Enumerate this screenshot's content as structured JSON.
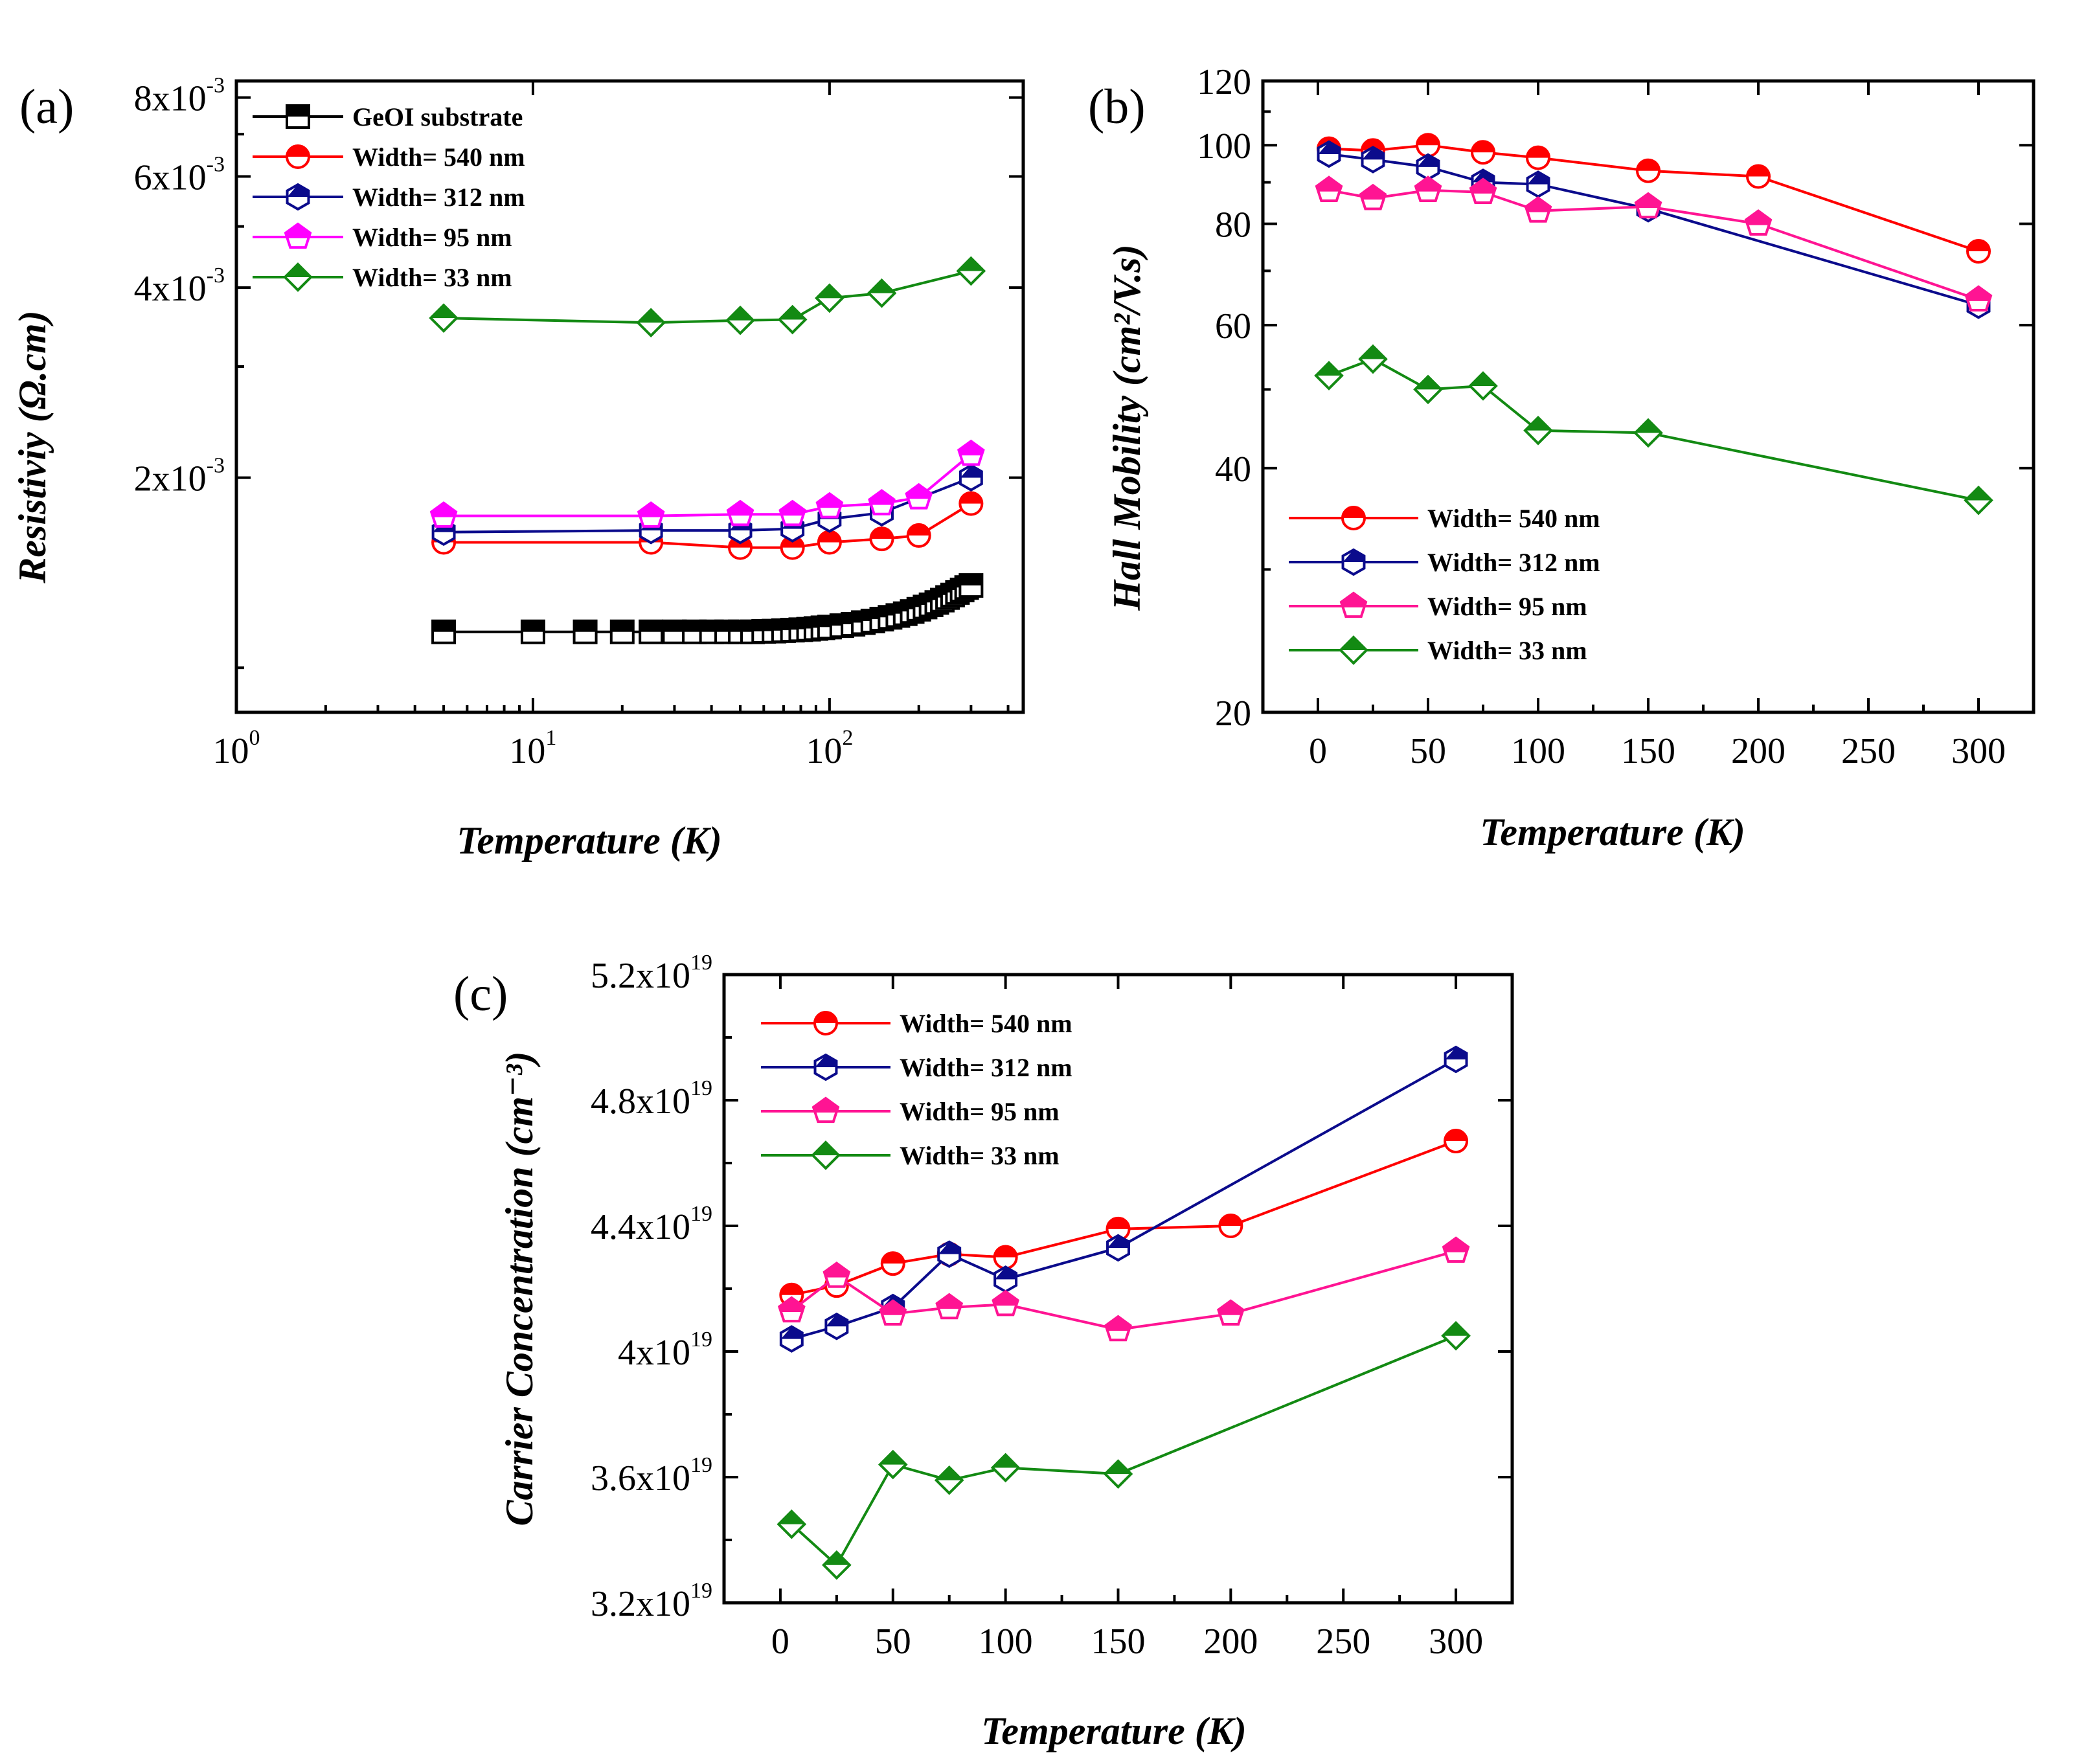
{
  "chart_data": [
    {
      "id": "a",
      "panel_label": "(a)",
      "type": "line",
      "xscale": "log",
      "yscale": "log",
      "xlabel": "Temperature (K)",
      "ylabel": "Resistiviy (Ω.cm)",
      "xlim": [
        1,
        450
      ],
      "ylim": [
        0.00085,
        0.0085
      ],
      "xticks": [
        {
          "v": 1,
          "base": "10",
          "exp": "0"
        },
        {
          "v": 10,
          "base": "10",
          "exp": "1"
        },
        {
          "v": 100,
          "base": "10",
          "exp": "2"
        }
      ],
      "yticks": [
        {
          "v": 0.002,
          "base": "2x10",
          "exp": "-3"
        },
        {
          "v": 0.004,
          "base": "4x10",
          "exp": "-3"
        },
        {
          "v": 0.006,
          "base": "6x10",
          "exp": "-3"
        },
        {
          "v": 0.008,
          "base": "8x10",
          "exp": "-3"
        }
      ],
      "legend_position": "top-left",
      "series": [
        {
          "name": "GeOI substrate",
          "color": "#000000",
          "marker": "square",
          "x": [
            5,
            10,
            15,
            20,
            25,
            30,
            35,
            40,
            45,
            50,
            55,
            60,
            65,
            70,
            75,
            80,
            85,
            90,
            95,
            100,
            110,
            120,
            130,
            140,
            150,
            160,
            170,
            180,
            190,
            200,
            210,
            220,
            230,
            240,
            250,
            260,
            270,
            280,
            290,
            300
          ],
          "y": [
            0.00114,
            0.00114,
            0.00114,
            0.00114,
            0.00114,
            0.00114,
            0.00114,
            0.00114,
            0.00114,
            0.00114,
            0.00114,
            0.001142,
            0.001143,
            0.001145,
            0.001147,
            0.001149,
            0.001151,
            0.001154,
            0.001157,
            0.00116,
            0.001166,
            0.001172,
            0.001179,
            0.001186,
            0.001194,
            0.001202,
            0.00121,
            0.001218,
            0.001228,
            0.001238,
            0.001248,
            0.001258,
            0.001269,
            0.00128,
            0.001292,
            0.001304,
            0.001316,
            0.001328,
            0.00134,
            0.00135
          ]
        },
        {
          "name": "Width= 540 nm",
          "color": "#ff0000",
          "marker": "circle",
          "x": [
            5,
            25,
            50,
            75,
            100,
            150,
            200,
            300
          ],
          "y": [
            0.00158,
            0.00158,
            0.00155,
            0.00155,
            0.00158,
            0.0016,
            0.00162,
            0.00182
          ]
        },
        {
          "name": "Width= 312 nm",
          "color": "#0b0b8c",
          "marker": "hexagon",
          "x": [
            5,
            25,
            50,
            75,
            100,
            150,
            200,
            300
          ],
          "y": [
            0.00164,
            0.00165,
            0.00165,
            0.00166,
            0.00172,
            0.00176,
            null,
            0.002
          ]
        },
        {
          "name": "Width= 95 nm",
          "color": "#ff00ff",
          "marker": "pentagon",
          "x": [
            5,
            25,
            50,
            75,
            100,
            150,
            200,
            300
          ],
          "y": [
            0.00174,
            0.00174,
            0.00175,
            0.00175,
            0.0018,
            0.00182,
            0.00186,
            0.00218
          ]
        },
        {
          "name": "Width= 33 nm",
          "color": "#138a13",
          "marker": "diamond",
          "x": [
            5,
            25,
            50,
            75,
            100,
            150,
            300
          ],
          "y": [
            0.00358,
            0.00352,
            0.00355,
            0.00356,
            0.00385,
            0.00392,
            0.00425
          ]
        }
      ]
    },
    {
      "id": "b",
      "panel_label": "(b)",
      "type": "line",
      "xscale": "linear",
      "yscale": "log",
      "xlabel": "Temperature (K)",
      "ylabel": "Hall Mobility (cm²/V.s)",
      "xlim": [
        -25,
        325
      ],
      "ylim": [
        20,
        120
      ],
      "xticks": [
        {
          "v": 0,
          "base": "0"
        },
        {
          "v": 50,
          "base": "50"
        },
        {
          "v": 100,
          "base": "100"
        },
        {
          "v": 150,
          "base": "150"
        },
        {
          "v": 200,
          "base": "200"
        },
        {
          "v": 250,
          "base": "250"
        },
        {
          "v": 300,
          "base": "300"
        }
      ],
      "yticks": [
        {
          "v": 20,
          "base": "20"
        },
        {
          "v": 40,
          "base": "40"
        },
        {
          "v": 60,
          "base": "60"
        },
        {
          "v": 80,
          "base": "80"
        },
        {
          "v": 100,
          "base": "100"
        },
        {
          "v": 120,
          "base": "120"
        }
      ],
      "legend_position": "bottom-left",
      "series": [
        {
          "name": "Width= 540 nm",
          "color": "#ff0000",
          "marker": "circle",
          "x": [
            5,
            25,
            50,
            75,
            100,
            150,
            200,
            300
          ],
          "y": [
            99,
            98.5,
            100,
            98,
            96.5,
            93,
            91.5,
            74
          ]
        },
        {
          "name": "Width= 312 nm",
          "color": "#0b0b8c",
          "marker": "hexagon",
          "x": [
            5,
            25,
            50,
            75,
            100,
            150,
            300
          ],
          "y": [
            97.5,
            96,
            94,
            90,
            89.5,
            83.5,
            63.5
          ]
        },
        {
          "name": "Width= 95 nm",
          "color": "#ff1493",
          "marker": "pentagon",
          "x": [
            5,
            25,
            50,
            75,
            100,
            150,
            200,
            300
          ],
          "y": [
            88,
            86,
            88,
            87.5,
            83,
            84,
            80,
            64.5
          ]
        },
        {
          "name": "Width= 33 nm",
          "color": "#138a13",
          "marker": "diamond",
          "x": [
            5,
            25,
            50,
            75,
            100,
            150,
            300
          ],
          "y": [
            52,
            54.5,
            50,
            50.5,
            44.5,
            44.2,
            36.5
          ]
        }
      ]
    },
    {
      "id": "c",
      "panel_label": "(c)",
      "type": "line",
      "xscale": "linear",
      "yscale": "linear",
      "xlabel": "Temperature (K)",
      "ylabel": "Carrier Concentration (cm⁻³)",
      "xlim": [
        -25,
        325
      ],
      "ylim": [
        3.2,
        5.2
      ],
      "xticks": [
        {
          "v": 0,
          "base": "0"
        },
        {
          "v": 50,
          "base": "50"
        },
        {
          "v": 100,
          "base": "100"
        },
        {
          "v": 150,
          "base": "150"
        },
        {
          "v": 200,
          "base": "200"
        },
        {
          "v": 250,
          "base": "250"
        },
        {
          "v": 300,
          "base": "300"
        }
      ],
      "yticks": [
        {
          "v": 3.2,
          "base": "3.2x10",
          "exp": "19"
        },
        {
          "v": 3.6,
          "base": "3.6x10",
          "exp": "19"
        },
        {
          "v": 4.0,
          "base": "4x10",
          "exp": "19"
        },
        {
          "v": 4.4,
          "base": "4.4x10",
          "exp": "19"
        },
        {
          "v": 4.8,
          "base": "4.8x10",
          "exp": "19"
        },
        {
          "v": 5.2,
          "base": "5.2x10",
          "exp": "19"
        }
      ],
      "legend_position": "top-left",
      "series": [
        {
          "name": "Width= 540 nm",
          "color": "#ff0000",
          "marker": "circle",
          "x": [
            5,
            25,
            50,
            75,
            100,
            150,
            200,
            300
          ],
          "y": [
            4.18,
            4.21,
            4.28,
            4.31,
            4.3,
            4.39,
            4.4,
            4.67
          ]
        },
        {
          "name": "Width= 312 nm",
          "color": "#0b0b8c",
          "marker": "hexagon",
          "x": [
            5,
            25,
            50,
            75,
            100,
            150,
            300
          ],
          "y": [
            4.04,
            4.08,
            4.14,
            4.31,
            4.23,
            4.33,
            4.93
          ]
        },
        {
          "name": "Width= 95 nm",
          "color": "#ff1493",
          "marker": "pentagon",
          "x": [
            5,
            25,
            50,
            75,
            100,
            150,
            200,
            300
          ],
          "y": [
            4.13,
            4.24,
            4.12,
            4.14,
            4.15,
            4.07,
            4.12,
            4.32
          ]
        },
        {
          "name": "Width= 33 nm",
          "color": "#138a13",
          "marker": "diamond",
          "x": [
            5,
            25,
            50,
            75,
            100,
            150,
            300
          ],
          "y": [
            3.45,
            3.32,
            3.64,
            3.59,
            3.63,
            3.61,
            4.05
          ]
        }
      ]
    }
  ]
}
